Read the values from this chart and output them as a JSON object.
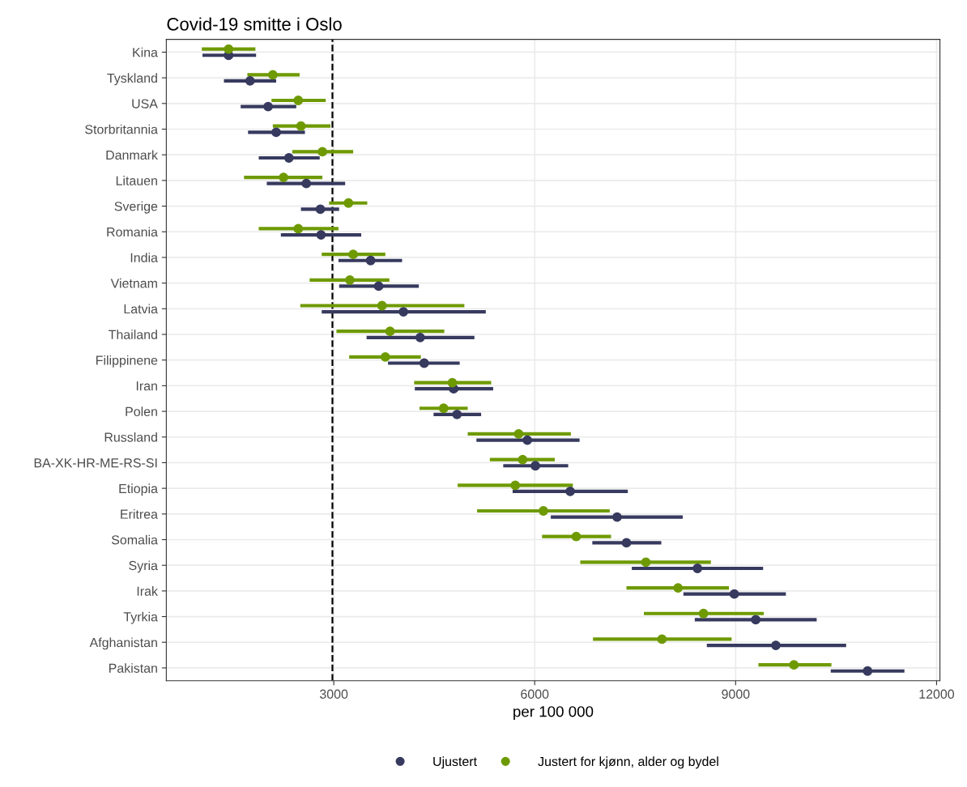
{
  "chart_data": {
    "type": "scatter",
    "orientation": "horizontal",
    "title": "Covid-19 smitte i Oslo",
    "xlabel": "per 100 000",
    "categories": [
      "Kina",
      "Tyskland",
      "USA",
      "Storbritannia",
      "Danmark",
      "Litauen",
      "Sverige",
      "Romania",
      "India",
      "Vietnam",
      "Latvia",
      "Thailand",
      "Filippinene",
      "Iran",
      "Polen",
      "Russland",
      "BA-XK-HR-ME-RS-SI",
      "Etiopia",
      "Eritrea",
      "Somalia",
      "Syria",
      "Irak",
      "Tyrkia",
      "Afghanistan",
      "Pakistan"
    ],
    "series": [
      {
        "name": "Ujustert",
        "color": "#373a5e",
        "values": [
          1430,
          1750,
          2020,
          2140,
          2330,
          2590,
          2800,
          2810,
          3550,
          3670,
          4040,
          4290,
          4350,
          4790,
          4840,
          5890,
          6010,
          6530,
          7230,
          7370,
          8430,
          8980,
          9300,
          9600,
          10970
        ],
        "errors": [
          [
            1040,
            1840
          ],
          [
            1360,
            2140
          ],
          [
            1610,
            2440
          ],
          [
            1720,
            2570
          ],
          [
            1880,
            2790
          ],
          [
            2000,
            3170
          ],
          [
            2510,
            3080
          ],
          [
            2210,
            3410
          ],
          [
            3070,
            4020
          ],
          [
            3080,
            4270
          ],
          [
            2820,
            5270
          ],
          [
            3490,
            5100
          ],
          [
            3810,
            4880
          ],
          [
            4210,
            5380
          ],
          [
            4490,
            5200
          ],
          [
            5130,
            6670
          ],
          [
            5530,
            6500
          ],
          [
            5670,
            7390
          ],
          [
            6240,
            8210
          ],
          [
            6860,
            7890
          ],
          [
            7450,
            9410
          ],
          [
            8220,
            9750
          ],
          [
            8390,
            10210
          ],
          [
            8570,
            10650
          ],
          [
            10420,
            11520
          ]
        ]
      },
      {
        "name": "Justert for kjønn, alder og bydel",
        "color": "#6e9a00",
        "values": [
          1430,
          2090,
          2470,
          2510,
          2830,
          2250,
          3220,
          2470,
          3290,
          3240,
          3720,
          3840,
          3770,
          4770,
          4640,
          5760,
          5820,
          5710,
          6130,
          6620,
          7660,
          8140,
          8520,
          7900,
          9870
        ],
        "errors": [
          [
            1030,
            1830
          ],
          [
            1710,
            2490
          ],
          [
            2070,
            2880
          ],
          [
            2090,
            2950
          ],
          [
            2380,
            3290
          ],
          [
            1660,
            2830
          ],
          [
            2930,
            3500
          ],
          [
            1880,
            3070
          ],
          [
            2820,
            3770
          ],
          [
            2640,
            3830
          ],
          [
            2500,
            4950
          ],
          [
            3040,
            4650
          ],
          [
            3230,
            4300
          ],
          [
            4200,
            5350
          ],
          [
            4280,
            5000
          ],
          [
            5000,
            6540
          ],
          [
            5330,
            6300
          ],
          [
            4850,
            6570
          ],
          [
            5140,
            7120
          ],
          [
            6110,
            7140
          ],
          [
            6680,
            8630
          ],
          [
            7370,
            8900
          ],
          [
            7630,
            9420
          ],
          [
            6870,
            8940
          ],
          [
            9340,
            10430
          ]
        ]
      }
    ],
    "xlim": [
      500,
      12050
    ],
    "xticks": [
      3000,
      6000,
      9000,
      12000
    ],
    "ref_lines": [
      {
        "axis": "x",
        "value": 2980,
        "color": "#000000",
        "line_style": "dashed"
      }
    ],
    "grid": true,
    "legend": "bottom",
    "marker": "circle"
  }
}
